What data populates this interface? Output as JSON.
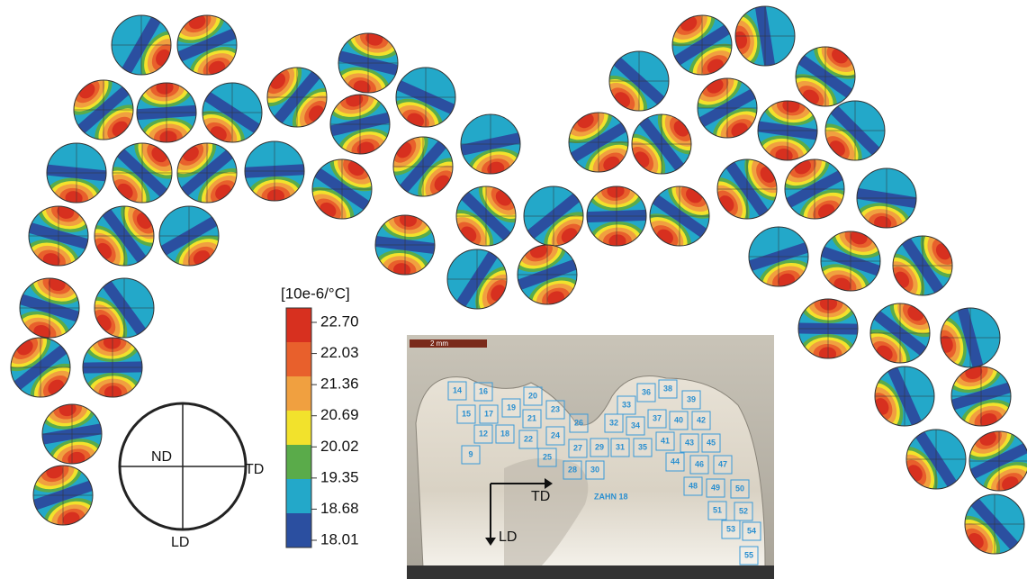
{
  "colorbar": {
    "unit": "[10e-6/°C]",
    "labels": [
      "22.70",
      "22.03",
      "21.36",
      "20.69",
      "20.02",
      "19.35",
      "18.68",
      "18.01"
    ]
  },
  "reference": {
    "nd": "ND",
    "td": "TD",
    "ld": "LD"
  },
  "photo": {
    "scale": "2 mm",
    "sample": "ZAHN 18",
    "axis_x": "TD",
    "axis_y": "LD",
    "regions": [
      "14",
      "16",
      "20",
      "15",
      "17",
      "19",
      "21",
      "23",
      "12",
      "18",
      "22",
      "24",
      "26",
      "9",
      "25",
      "27",
      "29",
      "28",
      "30",
      "31",
      "35",
      "32",
      "34",
      "33",
      "36",
      "38",
      "39",
      "37",
      "40",
      "42",
      "41",
      "43",
      "45",
      "44",
      "46",
      "47",
      "48",
      "49",
      "50",
      "51",
      "52",
      "53",
      "54",
      "55"
    ]
  }
}
